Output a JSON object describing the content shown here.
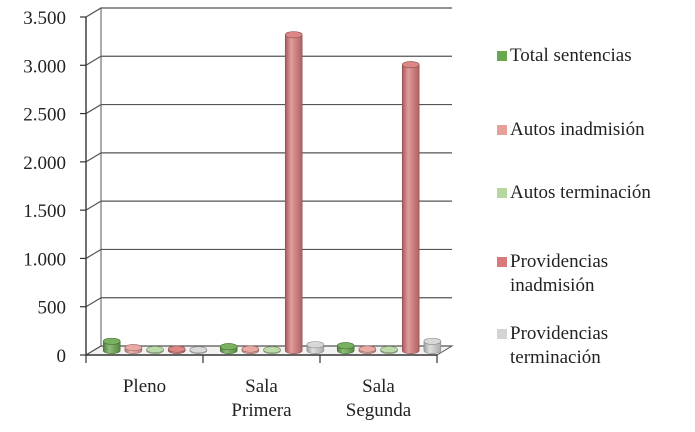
{
  "chart_data": {
    "type": "bar",
    "title": "",
    "xlabel": "",
    "ylabel": "",
    "ylim": [
      0,
      3500
    ],
    "yticks": [
      0,
      500,
      1000,
      1500,
      2000,
      2500,
      3000,
      3500
    ],
    "ytick_labels": [
      "0",
      "500",
      "1.000",
      "1.500",
      "2.000",
      "2.500",
      "3.000",
      "3.500"
    ],
    "categories": [
      "Pleno",
      "Sala Primera",
      "Sala Segunda"
    ],
    "category_lines": [
      [
        "Pleno"
      ],
      [
        "Sala",
        "Primera"
      ],
      [
        "Sala",
        "Segunda"
      ]
    ],
    "grid": true,
    "legend_position": "right",
    "style": "3d-cylinder",
    "series": [
      {
        "name": "Total sentencias",
        "color": "#6aa84f",
        "values": [
          95,
          40,
          50
        ]
      },
      {
        "name": "Autos inadmisión",
        "color": "#e8a09a",
        "values": [
          30,
          15,
          15
        ]
      },
      {
        "name": "Autos terminación",
        "color": "#b6d7a0",
        "values": [
          10,
          8,
          10
        ]
      },
      {
        "name": "Providencias inadmisión",
        "color": "#d97979",
        "values": [
          15,
          3270,
          2960
        ]
      },
      {
        "name": "Providencias terminación",
        "color": "#d4d4d4",
        "values": [
          8,
          60,
          95
        ]
      }
    ]
  },
  "legend": {
    "items": [
      {
        "lines": [
          "Total sentencias"
        ]
      },
      {
        "lines": [
          "Autos inadmisión"
        ]
      },
      {
        "lines": [
          "Autos terminación"
        ]
      },
      {
        "lines": [
          "Providencias",
          "inadmisión"
        ]
      },
      {
        "lines": [
          "Providencias",
          "terminación"
        ]
      }
    ]
  }
}
